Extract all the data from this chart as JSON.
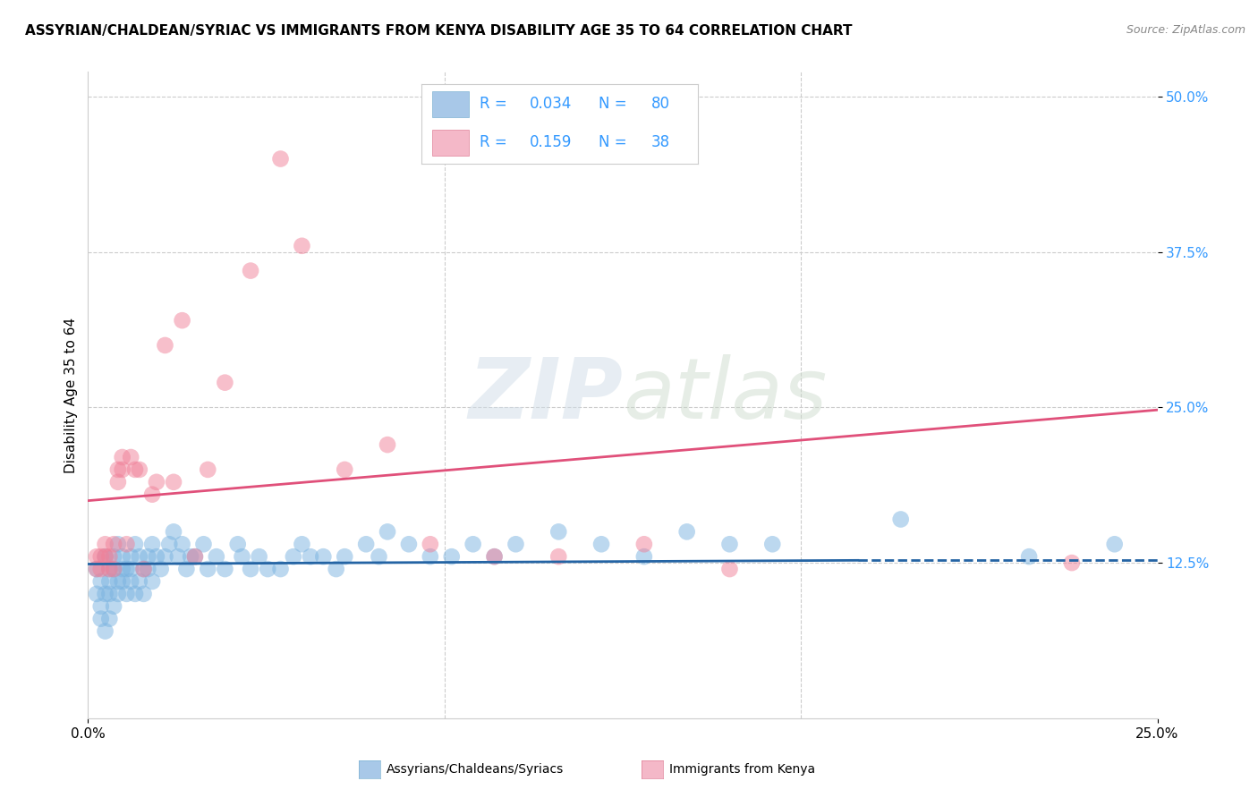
{
  "title": "ASSYRIAN/CHALDEAN/SYRIAC VS IMMIGRANTS FROM KENYA DISABILITY AGE 35 TO 64 CORRELATION CHART",
  "source": "Source: ZipAtlas.com",
  "ylabel": "Disability Age 35 to 64",
  "ytick_labels": [
    "50.0%",
    "37.5%",
    "25.0%",
    "12.5%"
  ],
  "ytick_positions": [
    0.5,
    0.375,
    0.25,
    0.125
  ],
  "xlim": [
    0.0,
    0.25
  ],
  "ylim": [
    0.0,
    0.52
  ],
  "blue_r": "0.034",
  "blue_n": "80",
  "pink_r": "0.159",
  "pink_n": "38",
  "blue_scatter_x": [
    0.002,
    0.002,
    0.003,
    0.003,
    0.003,
    0.004,
    0.004,
    0.004,
    0.005,
    0.005,
    0.005,
    0.005,
    0.006,
    0.006,
    0.006,
    0.007,
    0.007,
    0.007,
    0.008,
    0.008,
    0.008,
    0.009,
    0.009,
    0.01,
    0.01,
    0.01,
    0.011,
    0.011,
    0.012,
    0.012,
    0.013,
    0.013,
    0.014,
    0.014,
    0.015,
    0.015,
    0.016,
    0.017,
    0.018,
    0.019,
    0.02,
    0.021,
    0.022,
    0.023,
    0.024,
    0.025,
    0.027,
    0.028,
    0.03,
    0.032,
    0.035,
    0.036,
    0.038,
    0.04,
    0.042,
    0.045,
    0.048,
    0.05,
    0.052,
    0.055,
    0.058,
    0.06,
    0.065,
    0.068,
    0.07,
    0.075,
    0.08,
    0.085,
    0.09,
    0.095,
    0.1,
    0.11,
    0.12,
    0.13,
    0.14,
    0.15,
    0.16,
    0.19,
    0.22,
    0.24
  ],
  "blue_scatter_y": [
    0.12,
    0.1,
    0.09,
    0.11,
    0.08,
    0.13,
    0.1,
    0.07,
    0.12,
    0.11,
    0.1,
    0.08,
    0.12,
    0.13,
    0.09,
    0.14,
    0.11,
    0.1,
    0.13,
    0.12,
    0.11,
    0.12,
    0.1,
    0.13,
    0.12,
    0.11,
    0.14,
    0.1,
    0.13,
    0.11,
    0.12,
    0.1,
    0.13,
    0.12,
    0.14,
    0.11,
    0.13,
    0.12,
    0.13,
    0.14,
    0.15,
    0.13,
    0.14,
    0.12,
    0.13,
    0.13,
    0.14,
    0.12,
    0.13,
    0.12,
    0.14,
    0.13,
    0.12,
    0.13,
    0.12,
    0.12,
    0.13,
    0.14,
    0.13,
    0.13,
    0.12,
    0.13,
    0.14,
    0.13,
    0.15,
    0.14,
    0.13,
    0.13,
    0.14,
    0.13,
    0.14,
    0.15,
    0.14,
    0.13,
    0.15,
    0.14,
    0.14,
    0.16,
    0.13,
    0.14
  ],
  "pink_scatter_x": [
    0.002,
    0.002,
    0.003,
    0.003,
    0.004,
    0.004,
    0.005,
    0.005,
    0.006,
    0.006,
    0.007,
    0.007,
    0.008,
    0.008,
    0.009,
    0.01,
    0.011,
    0.012,
    0.013,
    0.015,
    0.016,
    0.018,
    0.02,
    0.022,
    0.025,
    0.028,
    0.032,
    0.038,
    0.045,
    0.05,
    0.06,
    0.07,
    0.08,
    0.095,
    0.11,
    0.13,
    0.15,
    0.23
  ],
  "pink_scatter_y": [
    0.12,
    0.13,
    0.12,
    0.13,
    0.13,
    0.14,
    0.12,
    0.13,
    0.12,
    0.14,
    0.19,
    0.2,
    0.2,
    0.21,
    0.14,
    0.21,
    0.2,
    0.2,
    0.12,
    0.18,
    0.19,
    0.3,
    0.19,
    0.32,
    0.13,
    0.2,
    0.27,
    0.36,
    0.45,
    0.38,
    0.2,
    0.22,
    0.14,
    0.13,
    0.13,
    0.14,
    0.12,
    0.125
  ],
  "blue_trend_x": [
    0.0,
    0.18,
    0.25
  ],
  "blue_trend_y": [
    0.124,
    0.127,
    0.127
  ],
  "blue_trend_solid_end": 0.18,
  "pink_trend_x": [
    0.0,
    0.25
  ],
  "pink_trend_y": [
    0.175,
    0.248
  ],
  "blue_color": "#7ab3e0",
  "pink_color": "#f08098",
  "blue_line_color": "#2464a4",
  "pink_line_color": "#e0507a",
  "legend_text_color": "#3399ff",
  "watermark_text": "ZIPatlas",
  "title_fontsize": 11,
  "source_text": "Source: ZipAtlas.com"
}
